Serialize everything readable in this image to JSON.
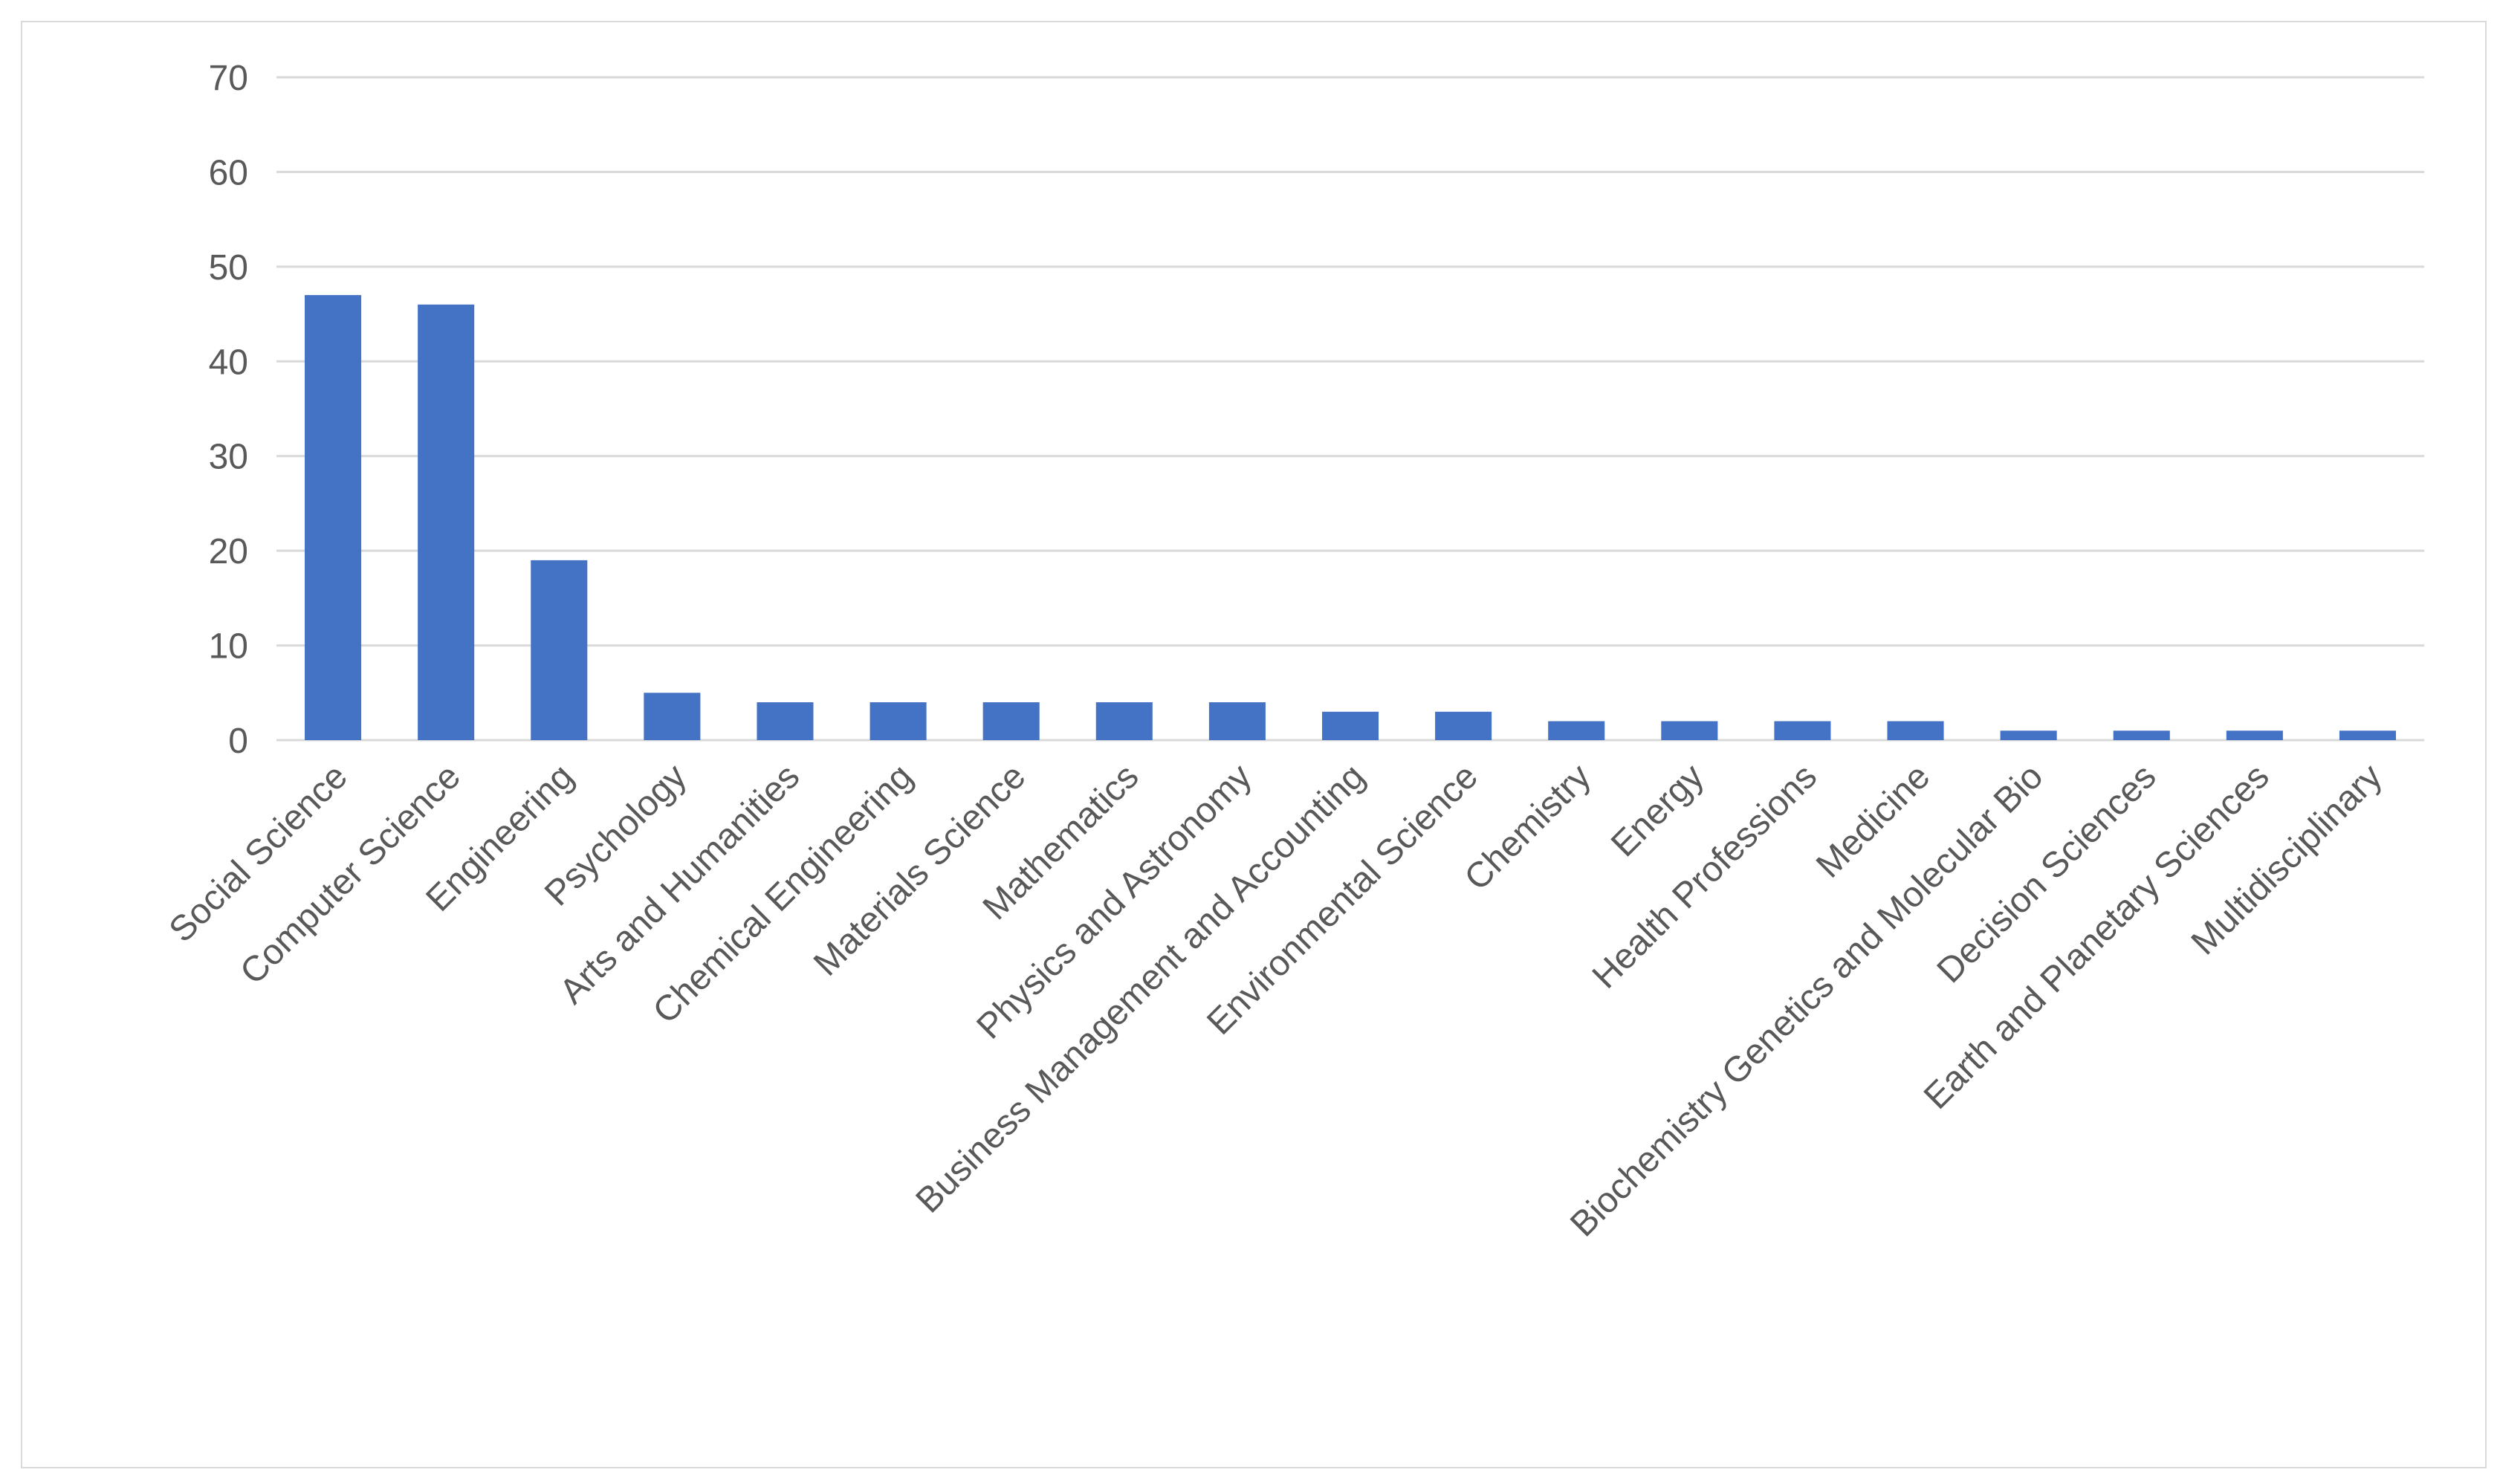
{
  "chart_data": {
    "type": "bar",
    "title": "",
    "xlabel": "",
    "ylabel": "",
    "ylim": [
      0,
      70
    ],
    "yticks": [
      0,
      10,
      20,
      30,
      40,
      50,
      60,
      70
    ],
    "grid": true,
    "legend": "none",
    "bar_color": "#4472C4",
    "categories": [
      "Social Science",
      "Computer Science",
      "Engineering",
      "Psychology",
      "Arts and Humanities",
      "Chemical Engineering",
      "Materials Science",
      "Mathematics",
      "Physics and Astronomy",
      "Business Management and Accounting",
      "Environmental Science",
      "Chemistry",
      "Energy",
      "Health Professions",
      "Medicine",
      "Biochemistry Genetics and Molecular Bio",
      "Decision Sciences",
      "Earth and Planetary Sciences",
      "Multidisciplinary"
    ],
    "values": [
      47,
      46,
      19,
      5,
      4,
      4,
      4,
      4,
      4,
      3,
      3,
      2,
      2,
      2,
      2,
      1,
      1,
      1,
      1
    ]
  }
}
